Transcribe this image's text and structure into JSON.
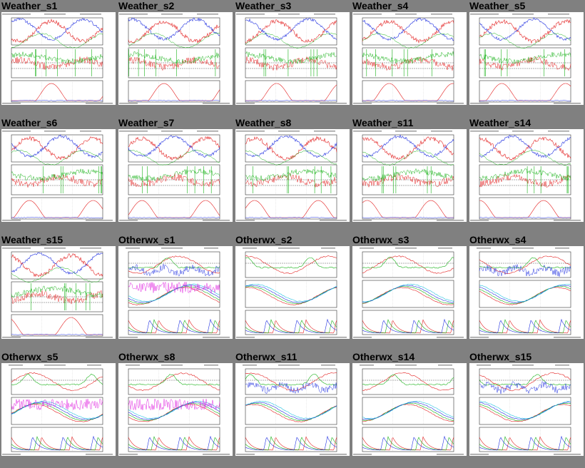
{
  "gallery": {
    "tiles": [
      {
        "label": "Weather_s1",
        "type": "weather"
      },
      {
        "label": "Weather_s2",
        "type": "weather"
      },
      {
        "label": "Weather_s3",
        "type": "weather"
      },
      {
        "label": "Weather_s4",
        "type": "weather"
      },
      {
        "label": "Weather_s5",
        "type": "weather"
      },
      {
        "label": "Weather_s6",
        "type": "weather"
      },
      {
        "label": "Weather_s7",
        "type": "weather"
      },
      {
        "label": "Weather_s8",
        "type": "weather"
      },
      {
        "label": "Weather_s11",
        "type": "weather"
      },
      {
        "label": "Weather_s14",
        "type": "weather"
      },
      {
        "label": "Weather_s15",
        "type": "weather"
      },
      {
        "label": "Otherwx_s1",
        "type": "otherwx"
      },
      {
        "label": "Otherwx_s2",
        "type": "otherwx"
      },
      {
        "label": "Otherwx_s3",
        "type": "otherwx"
      },
      {
        "label": "Otherwx_s4",
        "type": "otherwx"
      },
      {
        "label": "Otherwx_s5",
        "type": "otherwx"
      },
      {
        "label": "Otherwx_s8",
        "type": "otherwx"
      },
      {
        "label": "Otherwx_s11",
        "type": "otherwx"
      },
      {
        "label": "Otherwx_s14",
        "type": "otherwx"
      },
      {
        "label": "Otherwx_s15",
        "type": "otherwx"
      }
    ]
  },
  "colors": {
    "page_background": "#808080",
    "thumbnail_background": "#ffffff",
    "trace_red": "#e32020",
    "trace_green": "#19b219",
    "trace_blue": "#2030e0",
    "trace_cyan": "#20c0e0",
    "trace_magenta": "#e020e0"
  }
}
